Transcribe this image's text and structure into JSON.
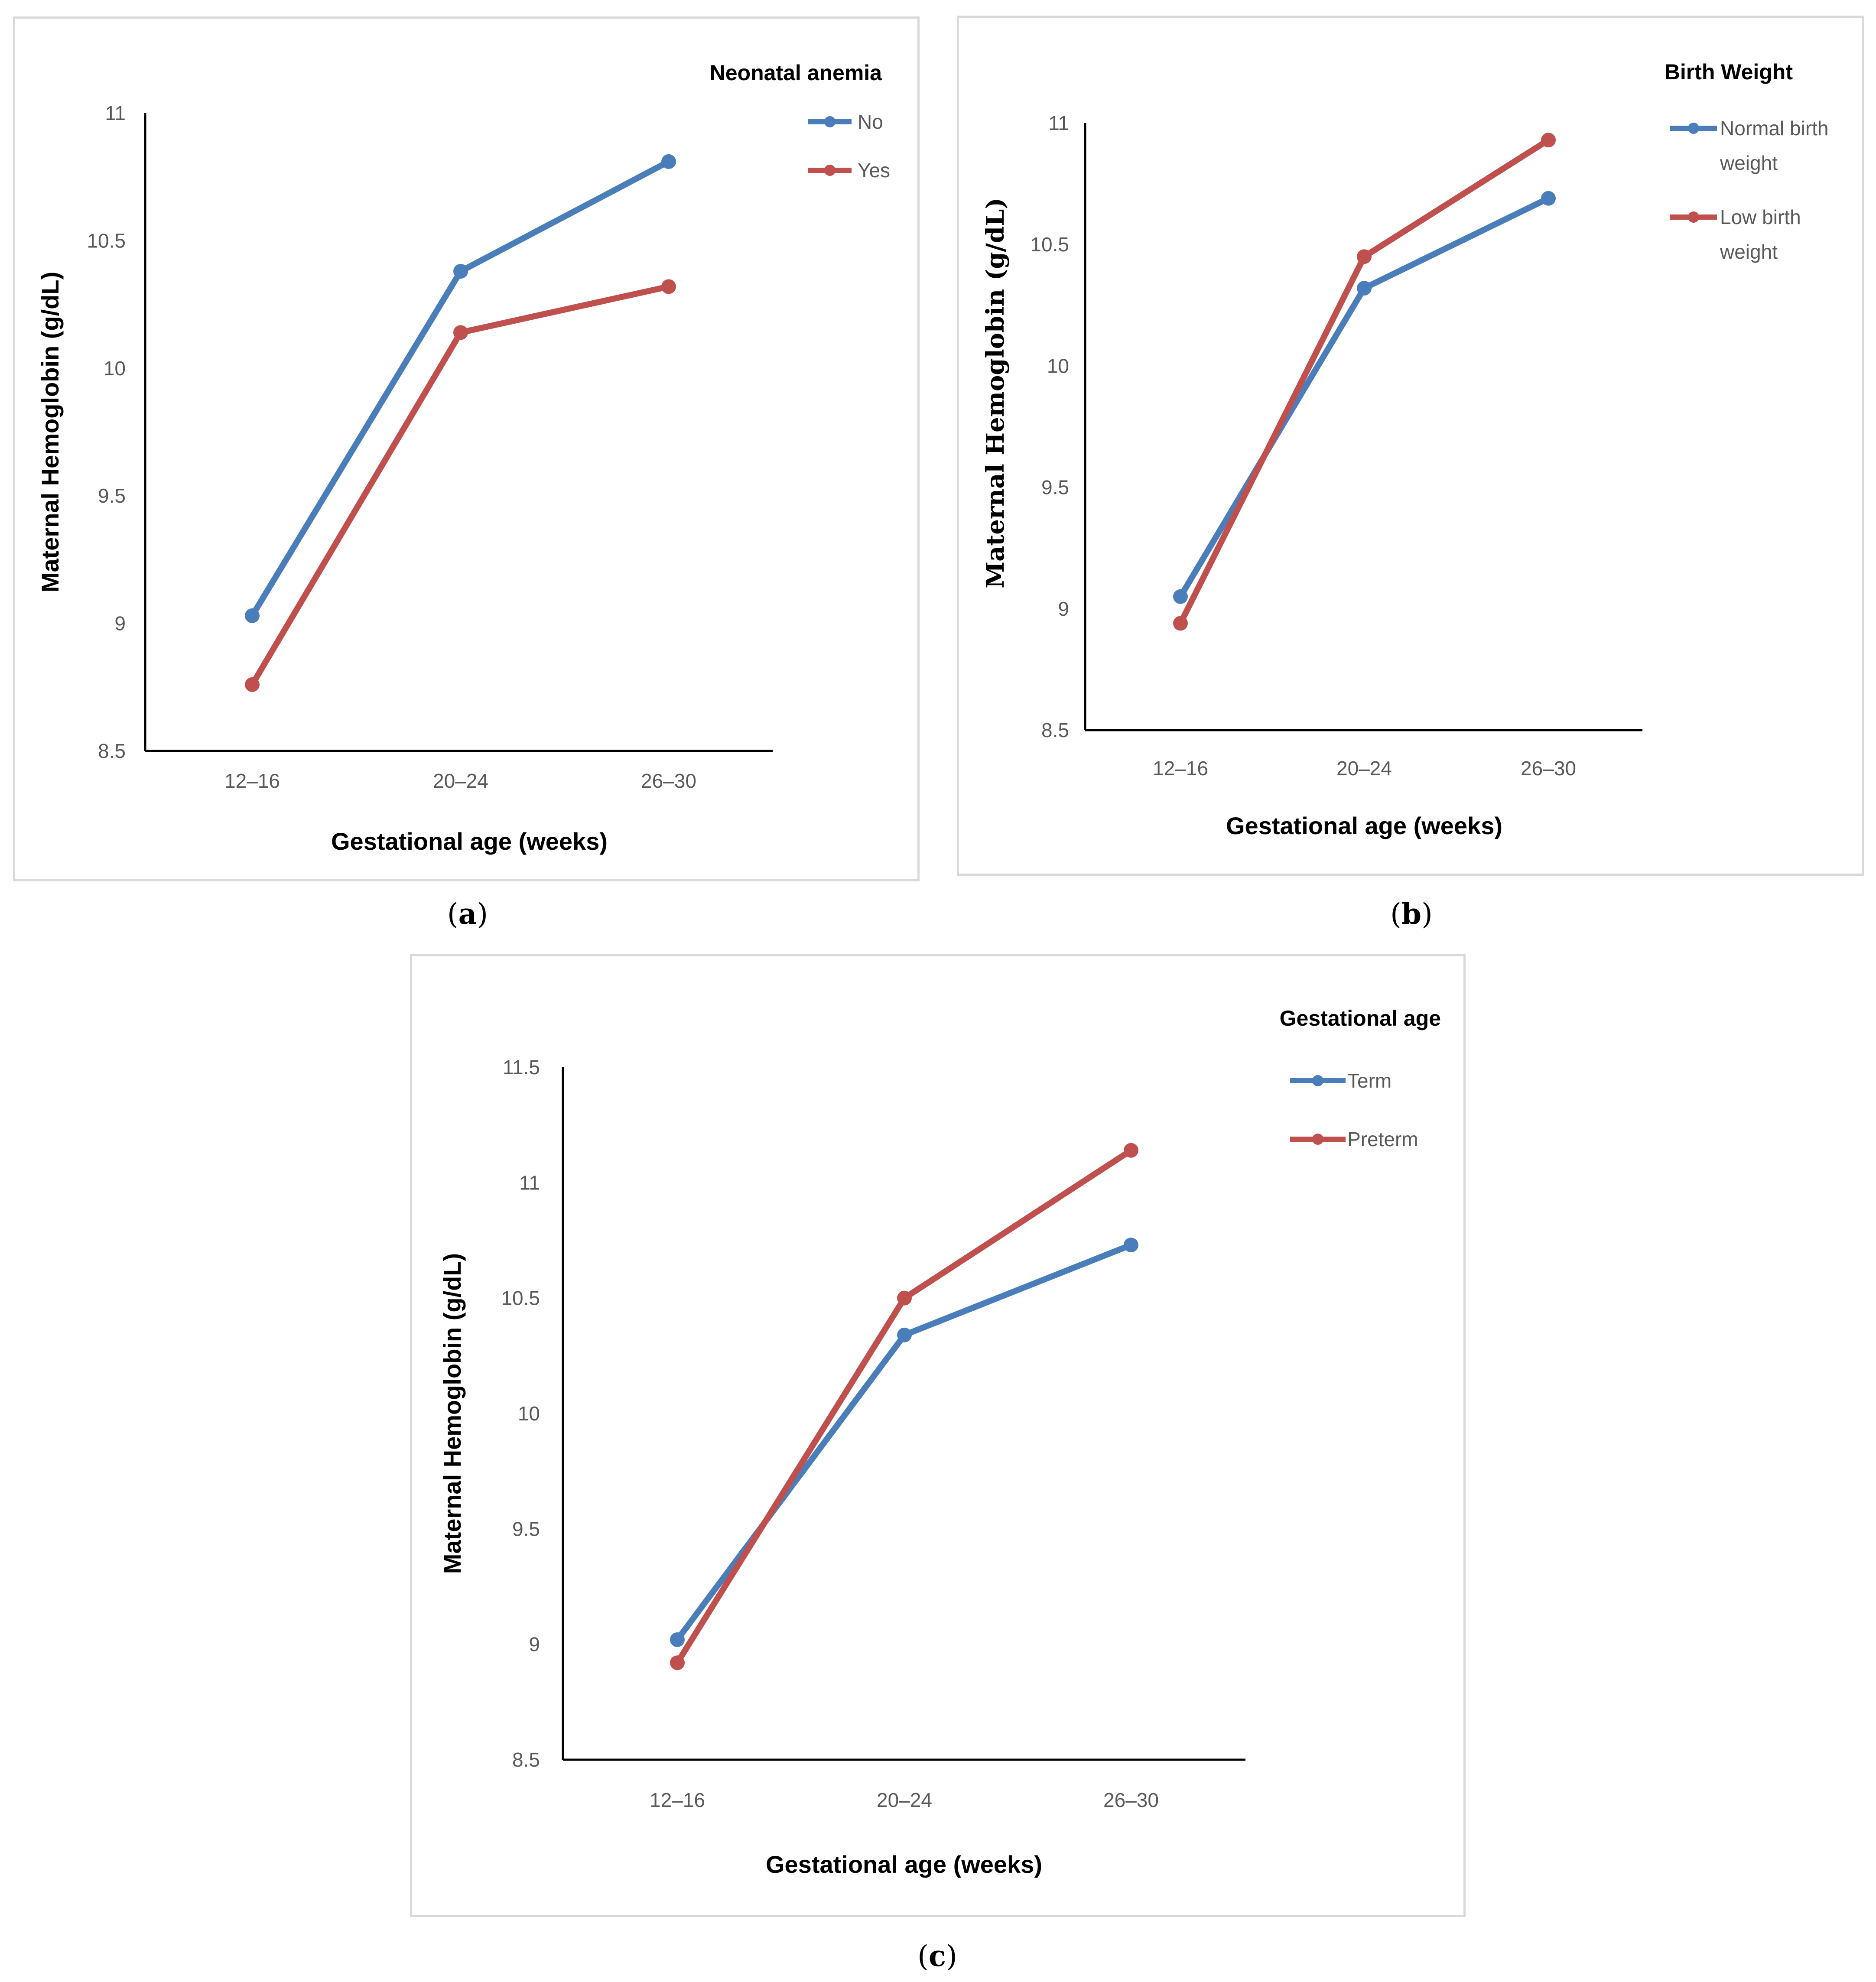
{
  "panels": {
    "a": {
      "caption": "a"
    },
    "b": {
      "caption": "b"
    },
    "c": {
      "caption": "c"
    }
  },
  "colors": {
    "series_blue": "#4a7ebb",
    "series_red": "#c0504d",
    "axis": "#000000",
    "tick_text": "#595959",
    "panel_border": "#d9d9d9"
  },
  "chart_data": [
    {
      "id": "a",
      "type": "line",
      "title": "",
      "legend_title": "Neonatal anemia",
      "legend_position": "top-right",
      "xlabel": "Gestational age (weeks)",
      "ylabel": "Maternal Hemoglobin (g/dL)",
      "categories": [
        "12–16",
        "20–24",
        "26–30"
      ],
      "ylim": [
        8.5,
        11
      ],
      "yticks": [
        "8.5",
        "9",
        "9.5",
        "10",
        "10.5",
        "11"
      ],
      "series": [
        {
          "name": "No",
          "color": "#4a7ebb",
          "values": [
            9.03,
            10.38,
            10.81
          ]
        },
        {
          "name": "Yes",
          "color": "#c0504d",
          "values": [
            8.76,
            10.14,
            10.32
          ]
        }
      ]
    },
    {
      "id": "b",
      "type": "line",
      "title": "",
      "legend_title": "Birth Weight",
      "legend_position": "top-right",
      "xlabel": "Gestational age (weeks)",
      "ylabel": "Maternal Hemoglobin (g/dL)",
      "categories": [
        "12–16",
        "20–24",
        "26–30"
      ],
      "ylim": [
        8.5,
        11
      ],
      "yticks": [
        "8.5",
        "9",
        "9.5",
        "10",
        "10.5",
        "11"
      ],
      "series": [
        {
          "name": "Normal birth weight",
          "label_lines": [
            "Normal birth",
            "weight"
          ],
          "color": "#4a7ebb",
          "values": [
            9.05,
            10.32,
            10.69
          ]
        },
        {
          "name": "Low birth weight",
          "label_lines": [
            "Low birth",
            "weight"
          ],
          "color": "#c0504d",
          "values": [
            8.94,
            10.45,
            10.93
          ]
        }
      ]
    },
    {
      "id": "c",
      "type": "line",
      "title": "",
      "legend_title": "Gestational age",
      "legend_position": "top-right",
      "xlabel": "Gestational age (weeks)",
      "ylabel": "Maternal Hemoglobin (g/dL)",
      "categories": [
        "12–16",
        "20–24",
        "26–30"
      ],
      "ylim": [
        8.5,
        11.5
      ],
      "yticks": [
        "8.5",
        "9",
        "9.5",
        "10",
        "10.5",
        "11",
        "11.5"
      ],
      "series": [
        {
          "name": "Term",
          "color": "#4a7ebb",
          "values": [
            9.02,
            10.34,
            10.73
          ]
        },
        {
          "name": "Preterm",
          "color": "#c0504d",
          "values": [
            8.92,
            10.5,
            11.14
          ]
        }
      ]
    }
  ]
}
